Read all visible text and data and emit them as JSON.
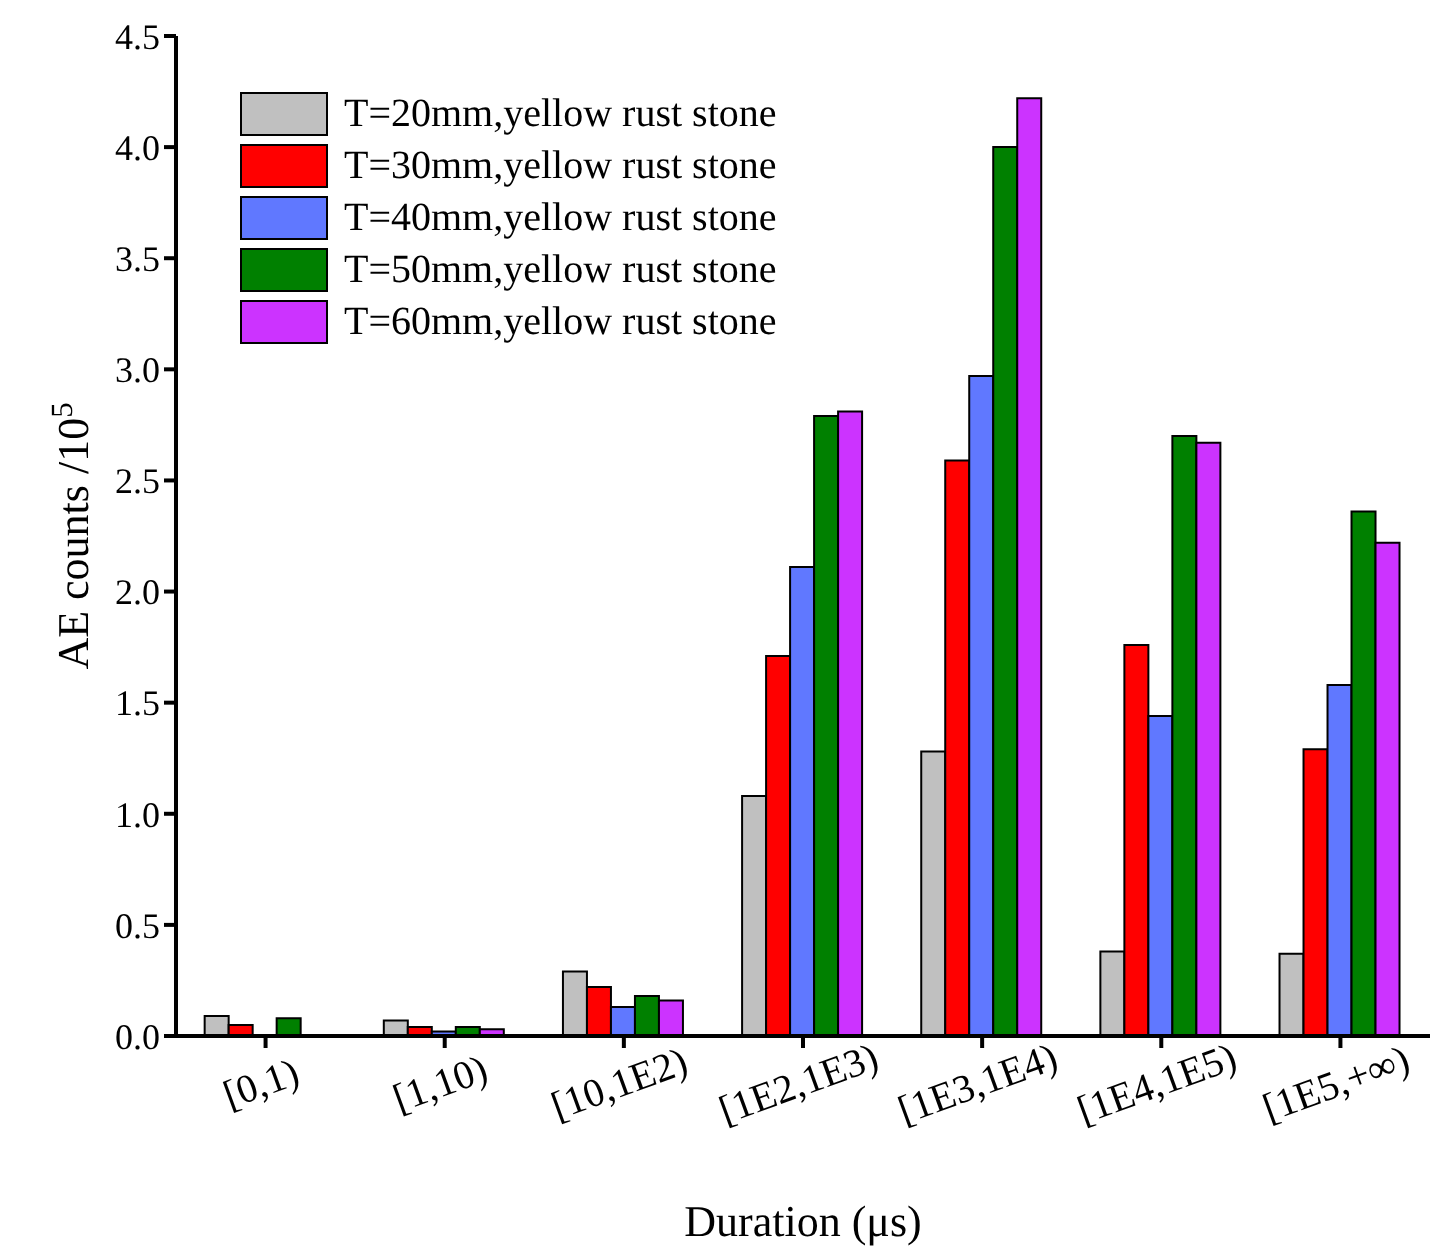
{
  "chart_data": {
    "type": "bar",
    "xlabel": "Duration (μs)",
    "ylabel": "AE counts /10$^{5}$",
    "categories": [
      "[0,1)",
      "[1,10)",
      "[10,1E2)",
      "[1E2,1E3)",
      "[1E3,1E4)",
      "[1E4,1E5)",
      "[1E5,+∞)"
    ],
    "series": [
      {
        "name": "T=20mm,yellow rust stone",
        "color": "#c0c0c0",
        "values": [
          0.09,
          0.07,
          0.29,
          1.08,
          1.28,
          0.38,
          0.37
        ]
      },
      {
        "name": "T=30mm,yellow rust stone",
        "color": "#ff0000",
        "values": [
          0.05,
          0.04,
          0.22,
          1.71,
          2.59,
          1.76,
          1.29
        ]
      },
      {
        "name": "T=40mm,yellow rust stone",
        "color": "#6078ff",
        "values": [
          null,
          0.02,
          0.13,
          2.11,
          2.97,
          1.44,
          1.58
        ]
      },
      {
        "name": "T=50mm,yellow rust stone",
        "color": "#008000",
        "values": [
          0.08,
          0.04,
          0.18,
          2.79,
          4.0,
          2.7,
          2.36
        ]
      },
      {
        "name": "T=60mm,yellow rust stone",
        "color": "#cc33ff",
        "values": [
          null,
          0.03,
          0.16,
          2.81,
          4.22,
          2.67,
          2.22
        ]
      }
    ],
    "ylim": [
      0,
      4.5
    ],
    "yticks": [
      {
        "value": 0,
        "label": "0.0"
      },
      {
        "value": 0.5,
        "label": "0.5"
      },
      {
        "value": 1,
        "label": "1.0"
      },
      {
        "value": 1.5,
        "label": "1.5"
      },
      {
        "value": 2,
        "label": "2.0"
      },
      {
        "value": 2.5,
        "label": "2.5"
      },
      {
        "value": 3,
        "label": "3.0"
      },
      {
        "value": 3.5,
        "label": "3.5"
      },
      {
        "value": 4,
        "label": "4.0"
      },
      {
        "value": 4.5,
        "label": "4.5"
      }
    ],
    "grid": false,
    "legend": "top left"
  }
}
